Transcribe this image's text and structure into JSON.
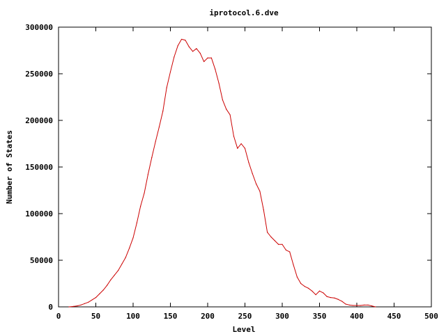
{
  "chart_data": {
    "type": "line",
    "title": "iprotocol.6.dve",
    "xlabel": "Level",
    "ylabel": "Number of States",
    "xlim": [
      0,
      500
    ],
    "ylim": [
      0,
      300000
    ],
    "xticks": [
      "0",
      "50",
      "100",
      "150",
      "200",
      "250",
      "300",
      "350",
      "400",
      "450",
      "500"
    ],
    "yticks": [
      "0",
      "50000",
      "100000",
      "150000",
      "200000",
      "250000",
      "300000"
    ],
    "grid": false,
    "legend": "none",
    "series": [
      {
        "color": "#cc0000",
        "x": [
          14,
          20,
          25,
          30,
          35,
          40,
          45,
          50,
          55,
          60,
          65,
          70,
          75,
          80,
          85,
          90,
          95,
          100,
          105,
          110,
          115,
          120,
          125,
          130,
          135,
          140,
          145,
          150,
          155,
          160,
          165,
          170,
          175,
          180,
          185,
          190,
          195,
          200,
          205,
          210,
          215,
          220,
          225,
          230,
          235,
          240,
          245,
          250,
          255,
          260,
          265,
          270,
          275,
          280,
          285,
          290,
          295,
          300,
          305,
          310,
          315,
          320,
          325,
          330,
          335,
          340,
          345,
          350,
          355,
          360,
          365,
          370,
          375,
          380,
          385,
          390,
          395,
          400,
          405,
          410,
          415,
          420,
          425
        ],
        "y": [
          0,
          500,
          1000,
          2000,
          3500,
          5000,
          7500,
          10000,
          14000,
          18000,
          23000,
          29000,
          34000,
          39000,
          46000,
          53000,
          63000,
          74000,
          90000,
          108000,
          122000,
          142000,
          160000,
          177000,
          193000,
          210000,
          235000,
          252000,
          268000,
          280000,
          287000,
          286000,
          279000,
          274000,
          277000,
          272000,
          263000,
          267000,
          267000,
          255000,
          240000,
          222000,
          212000,
          206000,
          183000,
          170000,
          175000,
          170000,
          155000,
          143000,
          132000,
          124000,
          104000,
          80000,
          75000,
          71000,
          67000,
          67000,
          61000,
          59000,
          45000,
          32000,
          25000,
          22000,
          20000,
          17000,
          13000,
          17000,
          15000,
          11000,
          10000,
          9500,
          8000,
          6000,
          3000,
          2000,
          1500,
          1500,
          1500,
          2000,
          2000,
          1000,
          0
        ]
      }
    ]
  }
}
